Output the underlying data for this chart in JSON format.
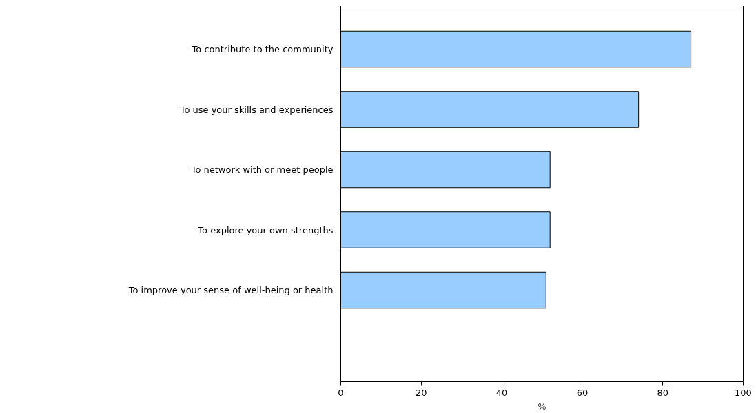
{
  "chart_data": {
    "type": "bar",
    "orientation": "horizontal",
    "xlabel": "%",
    "categories": [
      "To contribute to the community",
      "To use your skills and experiences",
      "To network with or meet people",
      "To explore your own strengths",
      "To improve your sense of well-being or health"
    ],
    "values": [
      87,
      74,
      52,
      52,
      51
    ],
    "color": "#99ccff",
    "xlim": [
      0,
      100
    ],
    "xticks": [
      0,
      20,
      40,
      60,
      80,
      100
    ],
    "grid": false
  }
}
